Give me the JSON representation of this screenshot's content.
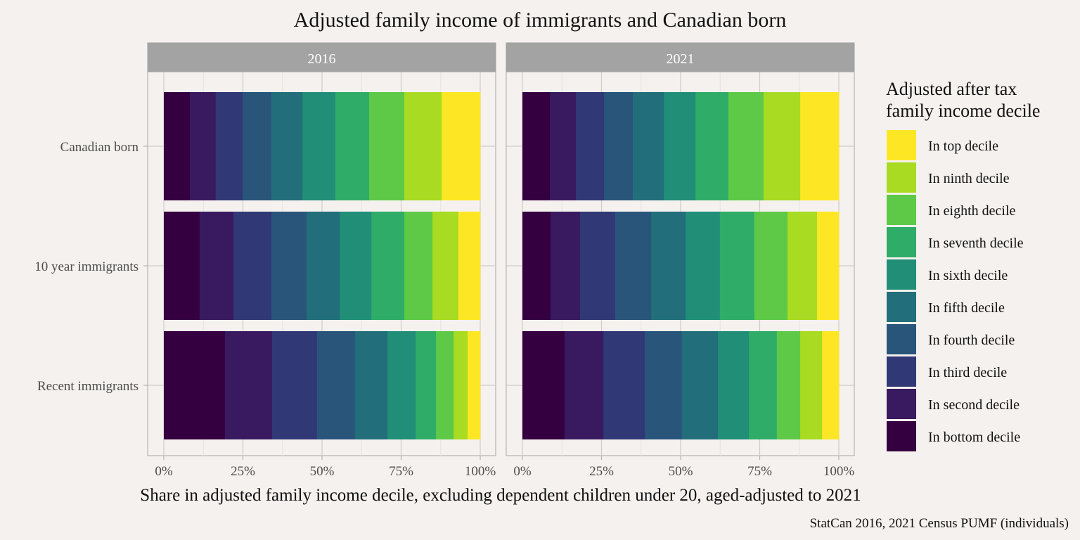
{
  "chart_data": {
    "type": "bar",
    "orientation": "horizontal",
    "stacked": "fill",
    "title": "Adjusted family income of immigrants and Canadian born",
    "xlabel": "Share in adjusted family income decile, excluding dependent children under 20, aged-adjusted to 2021",
    "ylabel": "",
    "caption": "StatCan 2016, 2021 Census PUMF (individuals)",
    "xlim": [
      0,
      1
    ],
    "x_ticks": [
      "0%",
      "25%",
      "50%",
      "75%",
      "100%"
    ],
    "grid": true,
    "facets": [
      "2016",
      "2021"
    ],
    "categories": [
      "Canadian born",
      "10 year immigrants",
      "Recent immigrants"
    ],
    "legend": {
      "title_lines": [
        "Adjusted after tax",
        "family income decile"
      ],
      "position": "right",
      "entries": [
        {
          "label": "In top decile",
          "color": "#FDE725"
        },
        {
          "label": "In ninth decile",
          "color": "#A8DB21"
        },
        {
          "label": "In eighth decile",
          "color": "#5EC947"
        },
        {
          "label": "In seventh decile",
          "color": "#2FAC67"
        },
        {
          "label": "In sixth decile",
          "color": "#218E78"
        },
        {
          "label": "In fifth decile",
          "color": "#226E7A"
        },
        {
          "label": "In fourth decile",
          "color": "#29557B"
        },
        {
          "label": "In third decile",
          "color": "#313876"
        },
        {
          "label": "In second decile",
          "color": "#391A60"
        },
        {
          "label": "In bottom decile",
          "color": "#350040"
        }
      ]
    },
    "series_order_left_to_right": [
      "In bottom decile",
      "In second decile",
      "In third decile",
      "In fourth decile",
      "In fifth decile",
      "In sixth decile",
      "In seventh decile",
      "In eighth decile",
      "In ninth decile",
      "In top decile"
    ],
    "data": {
      "2016": {
        "Canadian born": [
          0.082,
          0.082,
          0.085,
          0.091,
          0.098,
          0.104,
          0.107,
          0.111,
          0.118,
          0.122
        ],
        "10 year immigrants": [
          0.113,
          0.107,
          0.12,
          0.111,
          0.105,
          0.1,
          0.104,
          0.089,
          0.082,
          0.069
        ],
        "Recent immigrants": [
          0.193,
          0.149,
          0.142,
          0.12,
          0.103,
          0.089,
          0.064,
          0.056,
          0.044,
          0.04
        ]
      },
      "2021": {
        "Canadian born": [
          0.087,
          0.082,
          0.089,
          0.091,
          0.098,
          0.1,
          0.104,
          0.111,
          0.116,
          0.122
        ],
        "10 year immigrants": [
          0.089,
          0.093,
          0.111,
          0.114,
          0.109,
          0.108,
          0.109,
          0.105,
          0.093,
          0.069
        ],
        "Recent immigrants": [
          0.133,
          0.123,
          0.131,
          0.117,
          0.114,
          0.098,
          0.088,
          0.074,
          0.069,
          0.053
        ]
      }
    }
  }
}
